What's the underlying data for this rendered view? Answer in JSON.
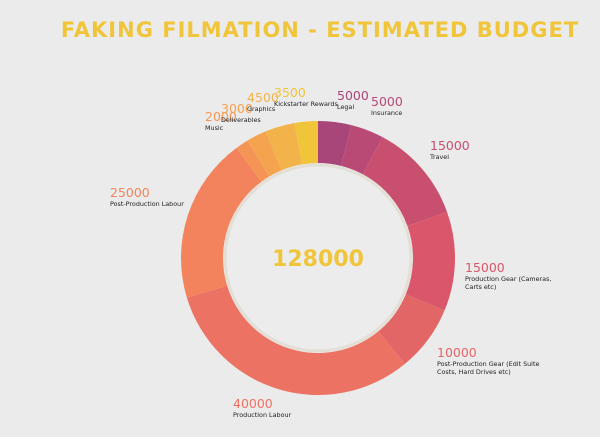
{
  "chart_data": {
    "type": "pie",
    "title": "FAKING FILMATION - ESTIMATED BUDGET",
    "total": "128000",
    "slices": [
      {
        "label": "Legal",
        "value": 5000,
        "color": "#a8467a"
      },
      {
        "label": "Insurance",
        "value": 5000,
        "color": "#b94a76"
      },
      {
        "label": "Travel",
        "value": 15000,
        "color": "#c94f6f"
      },
      {
        "label": "Production Gear (Cameras, Carts etc)",
        "value": 15000,
        "color": "#da576b"
      },
      {
        "label": "Post-Production Gear (Edit Suite Costs, Hard Drives etc)",
        "value": 10000,
        "color": "#e36666"
      },
      {
        "label": "Production Labour",
        "value": 40000,
        "color": "#ec7264"
      },
      {
        "label": "Post-Production Labour",
        "value": 25000,
        "color": "#f2835c"
      },
      {
        "label": "Music",
        "value": 2000,
        "color": "#f59555"
      },
      {
        "label": "Deliverables",
        "value": 3000,
        "color": "#f6a34f"
      },
      {
        "label": "Graphics",
        "value": 4500,
        "color": "#f3b34b"
      },
      {
        "label": "Kickstarter Rewards",
        "value": 3500,
        "color": "#f0c53a"
      }
    ]
  },
  "colors": {
    "background": "#ebebeb",
    "title": "#f0c53a",
    "total": "#f0c53a",
    "center_fill": "#ececec",
    "center_ring": "#e3dfd6"
  }
}
